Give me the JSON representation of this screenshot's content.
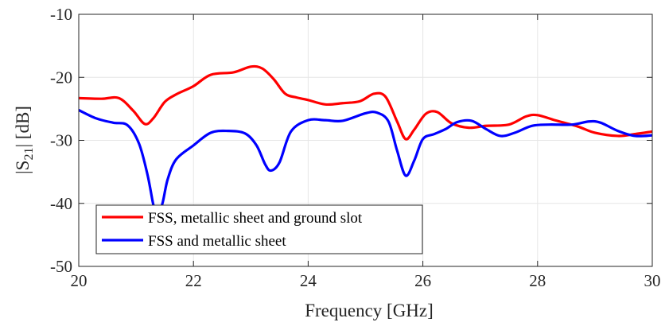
{
  "chart_data": {
    "type": "line",
    "xlabel": "Frequency [GHz]",
    "ylabel_parts": {
      "pre": "|S",
      "sub": "21",
      "post": "| [dB]"
    },
    "xlim": [
      20,
      30
    ],
    "ylim": [
      -50,
      -10
    ],
    "xticks": [
      20,
      22,
      24,
      26,
      28,
      30
    ],
    "yticks": [
      -10,
      -20,
      -30,
      -40,
      -50
    ],
    "xtick_labels": [
      "20",
      "22",
      "24",
      "26",
      "28",
      "30"
    ],
    "ytick_labels": [
      "-10",
      "-20",
      "-30",
      "-40",
      "-50"
    ],
    "grid": true,
    "legend_position": "bottom-left",
    "series": [
      {
        "name": "FSS, metallic sheet and ground slot",
        "color": "#ff0000",
        "x": [
          20.0,
          20.4,
          20.7,
          20.95,
          21.15,
          21.3,
          21.5,
          21.7,
          22.0,
          22.3,
          22.7,
          23.0,
          23.2,
          23.4,
          23.6,
          23.8,
          24.0,
          24.3,
          24.6,
          24.9,
          25.15,
          25.35,
          25.55,
          25.7,
          25.85,
          26.05,
          26.25,
          26.5,
          26.8,
          27.1,
          27.5,
          27.8,
          28.0,
          28.3,
          28.7,
          29.0,
          29.4,
          29.7,
          30.0
        ],
        "y": [
          -23.3,
          -23.4,
          -23.3,
          -25.3,
          -27.4,
          -26.5,
          -23.9,
          -22.7,
          -21.4,
          -19.6,
          -19.2,
          -18.3,
          -18.6,
          -20.3,
          -22.6,
          -23.2,
          -23.6,
          -24.3,
          -24.1,
          -23.8,
          -22.6,
          -23.1,
          -27.0,
          -29.8,
          -28.3,
          -25.8,
          -25.5,
          -27.3,
          -28.0,
          -27.7,
          -27.5,
          -26.2,
          -26.0,
          -26.8,
          -27.8,
          -28.8,
          -29.3,
          -29.0,
          -28.6
        ]
      },
      {
        "name": "FSS and metallic sheet",
        "color": "#0000ff",
        "x": [
          20.0,
          20.3,
          20.6,
          20.85,
          21.05,
          21.2,
          21.3,
          21.35,
          21.45,
          21.55,
          21.7,
          22.0,
          22.3,
          22.6,
          22.9,
          23.1,
          23.25,
          23.35,
          23.5,
          23.7,
          24.0,
          24.3,
          24.6,
          25.0,
          25.2,
          25.4,
          25.55,
          25.7,
          25.85,
          26.0,
          26.2,
          26.4,
          26.6,
          26.85,
          27.1,
          27.35,
          27.6,
          27.9,
          28.2,
          28.6,
          28.9,
          29.1,
          29.4,
          29.7,
          30.0
        ],
        "y": [
          -25.2,
          -26.5,
          -27.2,
          -27.6,
          -30.5,
          -35.5,
          -40.2,
          -41.2,
          -40.3,
          -36.2,
          -33.0,
          -30.8,
          -28.8,
          -28.5,
          -28.9,
          -30.8,
          -33.8,
          -34.8,
          -33.5,
          -28.6,
          -26.8,
          -26.8,
          -26.9,
          -25.7,
          -25.6,
          -27.0,
          -31.6,
          -35.6,
          -33.2,
          -29.8,
          -29.0,
          -28.2,
          -27.1,
          -26.9,
          -28.2,
          -29.3,
          -28.8,
          -27.7,
          -27.5,
          -27.5,
          -27.0,
          -27.2,
          -28.5,
          -29.3,
          -29.2
        ]
      }
    ]
  }
}
